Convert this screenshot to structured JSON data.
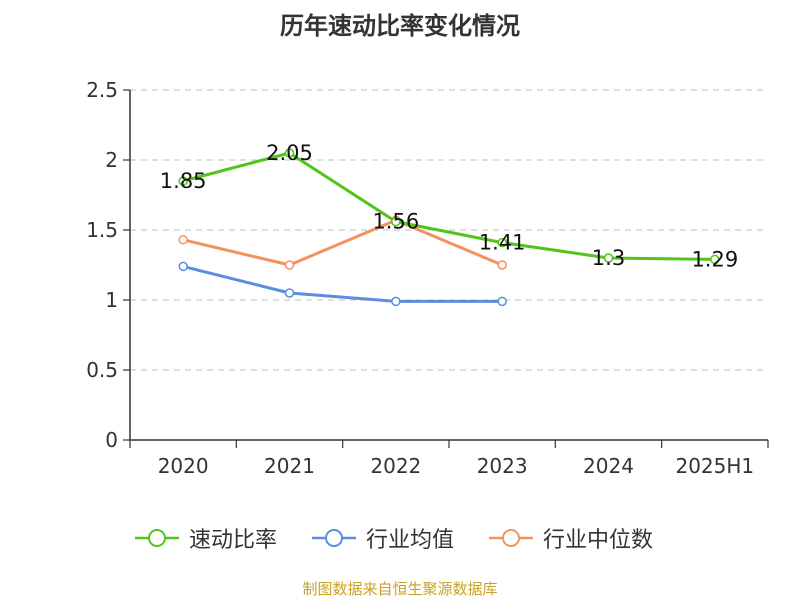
{
  "title": "历年速动比率变化情况",
  "source": "制图数据来自恒生聚源数据库",
  "chart_data": {
    "type": "line",
    "categories": [
      "2020",
      "2021",
      "2022",
      "2023",
      "2024",
      "2025H1"
    ],
    "ylim": [
      0,
      2.5
    ],
    "yticks": [
      "0",
      "0.5",
      "1",
      "1.5",
      "2",
      "2.5"
    ],
    "grid": true,
    "legend_position": "bottom",
    "series": [
      {
        "name": "速动比率",
        "color": "#52c41a",
        "values": [
          1.85,
          2.05,
          1.56,
          1.41,
          1.3,
          1.29
        ],
        "labels": [
          "1.85",
          "2.05",
          "1.56",
          "1.41",
          "1.3",
          "1.29"
        ]
      },
      {
        "name": "行业均值",
        "color": "#5b8ddf",
        "values": [
          1.24,
          1.05,
          0.99,
          0.99,
          null,
          null
        ]
      },
      {
        "name": "行业中位数",
        "color": "#f5915f",
        "values": [
          1.43,
          1.25,
          1.57,
          1.25,
          null,
          null
        ]
      }
    ]
  }
}
